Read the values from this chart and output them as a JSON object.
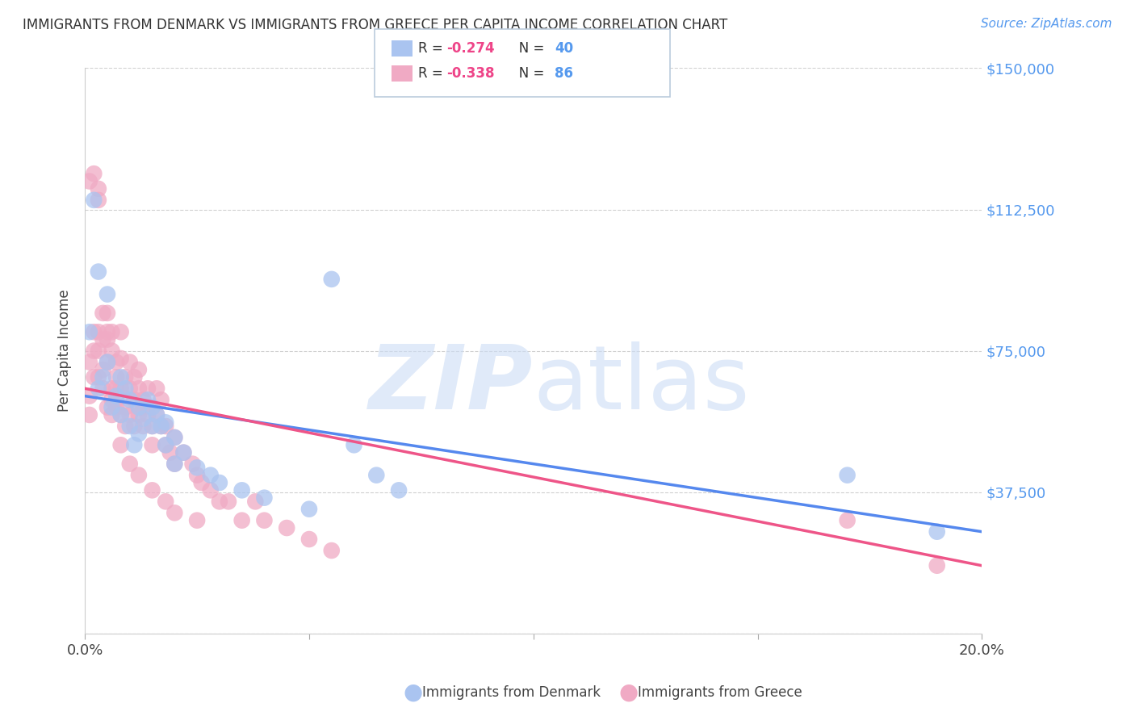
{
  "title": "IMMIGRANTS FROM DENMARK VS IMMIGRANTS FROM GREECE PER CAPITA INCOME CORRELATION CHART",
  "source": "Source: ZipAtlas.com",
  "ylabel": "Per Capita Income",
  "xlim": [
    0.0,
    0.2
  ],
  "ylim": [
    0,
    150000
  ],
  "yticks": [
    0,
    37500,
    75000,
    112500,
    150000
  ],
  "ytick_labels": [
    "",
    "$37,500",
    "$75,000",
    "$112,500",
    "$150,000"
  ],
  "background_color": "#ffffff",
  "grid_color": "#d0d0d0",
  "watermark": "ZIPatlas",
  "denmark_color": "#aac4f0",
  "greece_color": "#f0aac4",
  "denmark_line_color": "#5588ee",
  "greece_line_color": "#ee5588",
  "denmark_R": -0.274,
  "denmark_N": 40,
  "greece_R": -0.338,
  "greece_N": 86,
  "denmark_x": [
    0.001,
    0.002,
    0.003,
    0.004,
    0.005,
    0.006,
    0.007,
    0.008,
    0.009,
    0.01,
    0.011,
    0.012,
    0.013,
    0.014,
    0.015,
    0.016,
    0.017,
    0.018,
    0.02,
    0.022,
    0.025,
    0.028,
    0.03,
    0.035,
    0.04,
    0.05,
    0.055,
    0.06,
    0.065,
    0.07,
    0.003,
    0.005,
    0.008,
    0.01,
    0.012,
    0.015,
    0.018,
    0.02,
    0.17,
    0.19
  ],
  "denmark_y": [
    80000,
    115000,
    65000,
    68000,
    72000,
    60000,
    63000,
    58000,
    65000,
    55000,
    50000,
    53000,
    57000,
    62000,
    60000,
    58000,
    55000,
    56000,
    52000,
    48000,
    44000,
    42000,
    40000,
    38000,
    36000,
    33000,
    94000,
    50000,
    42000,
    38000,
    96000,
    90000,
    68000,
    62000,
    60000,
    55000,
    50000,
    45000,
    42000,
    27000
  ],
  "greece_x": [
    0.001,
    0.001,
    0.001,
    0.002,
    0.002,
    0.002,
    0.003,
    0.003,
    0.003,
    0.003,
    0.004,
    0.004,
    0.004,
    0.005,
    0.005,
    0.005,
    0.005,
    0.006,
    0.006,
    0.006,
    0.006,
    0.007,
    0.007,
    0.007,
    0.007,
    0.008,
    0.008,
    0.008,
    0.008,
    0.009,
    0.009,
    0.009,
    0.01,
    0.01,
    0.01,
    0.011,
    0.011,
    0.011,
    0.012,
    0.012,
    0.012,
    0.013,
    0.013,
    0.013,
    0.014,
    0.014,
    0.015,
    0.015,
    0.016,
    0.016,
    0.017,
    0.017,
    0.018,
    0.018,
    0.019,
    0.02,
    0.02,
    0.022,
    0.024,
    0.025,
    0.026,
    0.028,
    0.03,
    0.032,
    0.035,
    0.038,
    0.04,
    0.045,
    0.05,
    0.055,
    0.001,
    0.002,
    0.003,
    0.004,
    0.005,
    0.006,
    0.007,
    0.008,
    0.01,
    0.012,
    0.015,
    0.018,
    0.02,
    0.025,
    0.17,
    0.19
  ],
  "greece_y": [
    63000,
    72000,
    58000,
    68000,
    80000,
    75000,
    75000,
    80000,
    68000,
    118000,
    65000,
    70000,
    78000,
    60000,
    72000,
    80000,
    85000,
    62000,
    75000,
    65000,
    80000,
    60000,
    68000,
    72000,
    62000,
    58000,
    65000,
    73000,
    80000,
    68000,
    55000,
    60000,
    72000,
    65000,
    58000,
    55000,
    62000,
    68000,
    65000,
    70000,
    58000,
    60000,
    55000,
    62000,
    58000,
    65000,
    50000,
    55000,
    65000,
    58000,
    55000,
    62000,
    50000,
    55000,
    48000,
    52000,
    45000,
    48000,
    45000,
    42000,
    40000,
    38000,
    35000,
    35000,
    30000,
    35000,
    30000,
    28000,
    25000,
    22000,
    120000,
    122000,
    115000,
    85000,
    78000,
    58000,
    65000,
    50000,
    45000,
    42000,
    38000,
    35000,
    32000,
    30000,
    30000,
    18000
  ]
}
